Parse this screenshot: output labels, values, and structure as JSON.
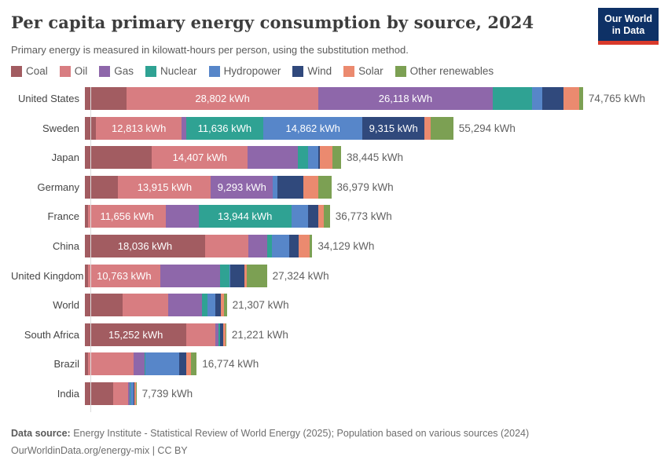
{
  "header": {
    "title": "Per capita primary energy consumption by source, 2024",
    "subtitle": "Primary energy is measured in kilowatt-hours per person, using the substitution method.",
    "logo": {
      "line1": "Our World",
      "line2": "in Data",
      "bg_color": "#0e3166",
      "accent_color": "#d93a2b"
    }
  },
  "legend": {
    "items": [
      {
        "label": "Coal",
        "color": "#a25c61"
      },
      {
        "label": "Oil",
        "color": "#d87d81"
      },
      {
        "label": "Gas",
        "color": "#8e67aa"
      },
      {
        "label": "Nuclear",
        "color": "#2fa293"
      },
      {
        "label": "Hydropower",
        "color": "#5786c9"
      },
      {
        "label": "Wind",
        "color": "#30497c"
      },
      {
        "label": "Solar",
        "color": "#eb8a6f"
      },
      {
        "label": "Other renewables",
        "color": "#7ca053"
      }
    ]
  },
  "chart_data": {
    "type": "bar",
    "stacked": true,
    "orientation": "horizontal",
    "unit": "kWh",
    "xlim": [
      0,
      74765
    ],
    "grid": false,
    "series_names": [
      "Coal",
      "Oil",
      "Gas",
      "Nuclear",
      "Hydropower",
      "Wind",
      "Solar",
      "Other renewables"
    ],
    "series_colors": [
      "#a25c61",
      "#d87d81",
      "#8e67aa",
      "#2fa293",
      "#5786c9",
      "#30497c",
      "#eb8a6f",
      "#7ca053"
    ],
    "rows": [
      {
        "country": "United States",
        "total": 74765,
        "total_label": "74,765 kWh",
        "values": [
          6250,
          28802,
          26118,
          5900,
          1550,
          3170,
          2450,
          525
        ],
        "segment_labels": {
          "1": "28,802 kWh",
          "2": "26,118 kWh"
        }
      },
      {
        "country": "Sweden",
        "total": 55294,
        "total_label": "55,294 kWh",
        "values": [
          1700,
          12813,
          650,
          11636,
          14862,
          9315,
          950,
          3368
        ],
        "segment_labels": {
          "1": "12,813 kWh",
          "3": "11,636 kWh",
          "4": "14,862 kWh",
          "5": "9,315 kWh"
        }
      },
      {
        "country": "Japan",
        "total": 38445,
        "total_label": "38,445 kWh",
        "values": [
          10050,
          14407,
          7480,
          1570,
          1570,
          240,
          1810,
          1318
        ],
        "segment_labels": {
          "1": "14,407 kWh"
        }
      },
      {
        "country": "Germany",
        "total": 36979,
        "total_label": "36,979 kWh",
        "values": [
          5000,
          13915,
          9293,
          0,
          720,
          3900,
          2150,
          2001
        ],
        "segment_labels": {
          "1": "13,915 kWh",
          "2": "9,293 kWh"
        }
      },
      {
        "country": "France",
        "total": 36773,
        "total_label": "36,773 kWh",
        "values": [
          500,
          11656,
          4900,
          13944,
          2500,
          1570,
          820,
          883
        ],
        "segment_labels": {
          "1": "11,656 kWh",
          "3": "13,944 kWh"
        }
      },
      {
        "country": "China",
        "total": 34129,
        "total_label": "34,129 kWh",
        "values": [
          18036,
          6450,
          2880,
          680,
          2580,
          1500,
          1580,
          423
        ],
        "segment_labels": {
          "0": "18,036 kWh"
        }
      },
      {
        "country": "United Kingdom",
        "total": 27324,
        "total_label": "27,324 kWh",
        "values": [
          500,
          10763,
          9000,
          1400,
          170,
          2100,
          420,
          2971
        ],
        "segment_labels": {
          "1": "10,763 kWh"
        }
      },
      {
        "country": "World",
        "total": 21307,
        "total_label": "21,307 kWh",
        "values": [
          5650,
          6820,
          5080,
          880,
          1190,
          800,
          480,
          407
        ],
        "segment_labels": {}
      },
      {
        "country": "South Africa",
        "total": 21221,
        "total_label": "21,221 kWh",
        "values": [
          15252,
          4330,
          420,
          250,
          60,
          420,
          430,
          59
        ],
        "segment_labels": {
          "0": "15,252 kWh"
        }
      },
      {
        "country": "Brazil",
        "total": 16774,
        "total_label": "16,774 kWh",
        "values": [
          470,
          6800,
          1650,
          160,
          5060,
          1100,
          710,
          824
        ],
        "segment_labels": {}
      },
      {
        "country": "India",
        "total": 7739,
        "total_label": "7,739 kWh",
        "values": [
          4300,
          2150,
          310,
          90,
          430,
          190,
          200,
          69
        ],
        "segment_labels": {}
      }
    ]
  },
  "footer": {
    "datasource_label": "Data source:",
    "datasource_text": " Energy Institute - Statistical Review of World Energy (2025); Population based on various sources (2024)",
    "license_text": "OurWorldinData.org/energy-mix | CC BY"
  }
}
